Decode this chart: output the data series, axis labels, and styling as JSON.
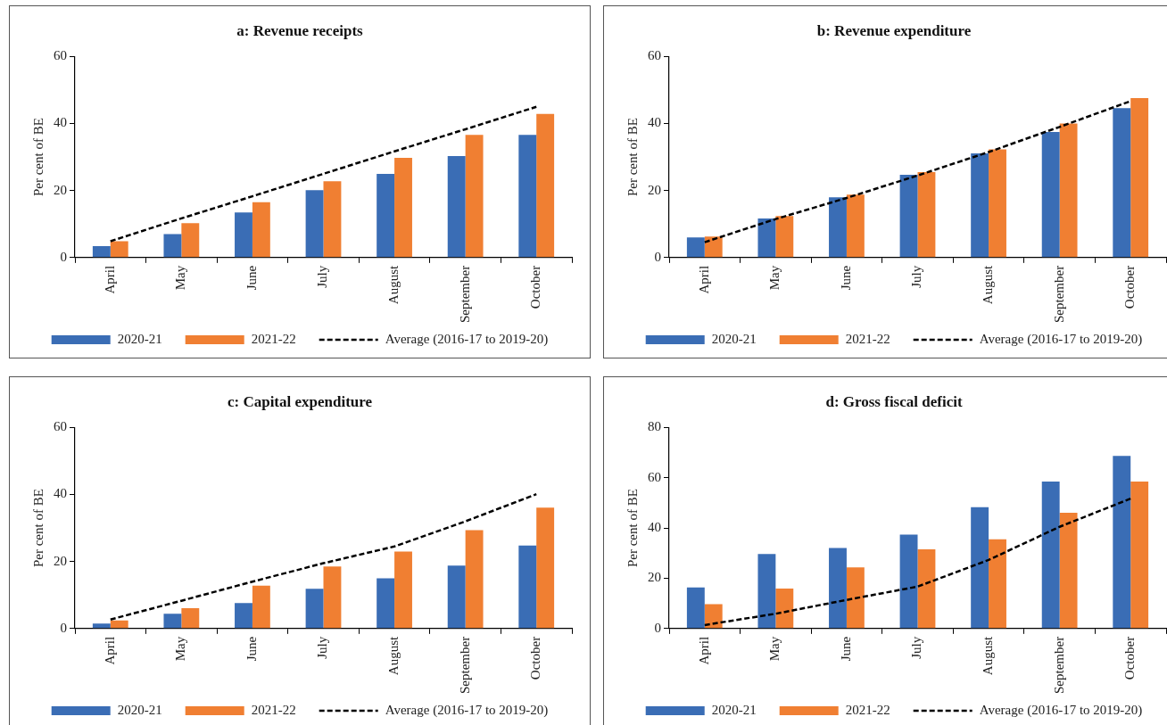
{
  "chart_data": [
    {
      "type": "bar",
      "title": "a: Revenue receipts",
      "ylabel": "Per cent of BE",
      "categories": [
        "April",
        "May",
        "June",
        "July",
        "August",
        "September",
        "October"
      ],
      "ylim": [
        0,
        60
      ],
      "yticks": [
        0,
        20,
        40,
        60
      ],
      "grid": false,
      "legend": "bottom",
      "series": [
        {
          "name": "2020-21",
          "color": "#3a6db5",
          "values": [
            3.4,
            7.0,
            13.5,
            20.1,
            25.0,
            30.3,
            36.6
          ]
        },
        {
          "name": "2021-22",
          "color": "#f07f32",
          "values": [
            4.9,
            10.3,
            16.5,
            22.8,
            29.8,
            36.6,
            42.9
          ]
        },
        {
          "name": "Average (2016-17 to 2019-20)",
          "type": "line",
          "color": "#000000",
          "line_style": "dashed",
          "marker": "none",
          "values": [
            4.9,
            11.7,
            18.3,
            25.0,
            31.7,
            38.3,
            45.0
          ]
        }
      ]
    },
    {
      "type": "bar",
      "title": "b: Revenue expenditure",
      "ylabel": "Per cent of BE",
      "categories": [
        "April",
        "May",
        "June",
        "July",
        "August",
        "September",
        "October"
      ],
      "ylim": [
        0,
        60
      ],
      "yticks": [
        0,
        20,
        40,
        60
      ],
      "grid": false,
      "legend": "bottom",
      "series": [
        {
          "name": "2020-21",
          "color": "#3a6db5",
          "values": [
            6.0,
            11.7,
            18.0,
            24.7,
            31.1,
            37.5,
            44.6
          ]
        },
        {
          "name": "2021-22",
          "color": "#f07f32",
          "values": [
            6.3,
            12.4,
            18.8,
            25.5,
            32.3,
            40.0,
            47.6
          ]
        },
        {
          "name": "Average (2016-17 to 2019-20)",
          "type": "line",
          "color": "#000000",
          "line_style": "dashed",
          "marker": "none",
          "values": [
            4.6,
            11.5,
            17.8,
            24.5,
            31.5,
            39.0,
            46.7
          ]
        }
      ]
    },
    {
      "type": "bar",
      "title": "c: Capital expenditure",
      "ylabel": "Per cent of BE",
      "categories": [
        "April",
        "May",
        "June",
        "July",
        "August",
        "September",
        "October"
      ],
      "ylim": [
        0,
        60
      ],
      "yticks": [
        0,
        20,
        40,
        60
      ],
      "grid": false,
      "legend": "bottom",
      "series": [
        {
          "name": "2020-21",
          "color": "#3a6db5",
          "values": [
            1.5,
            4.4,
            7.6,
            11.9,
            15.0,
            18.8,
            24.8
          ]
        },
        {
          "name": "2021-22",
          "color": "#f07f32",
          "values": [
            2.4,
            6.1,
            12.8,
            18.5,
            23.0,
            29.4,
            36.1
          ]
        },
        {
          "name": "Average (2016-17 to 2019-20)",
          "type": "line",
          "color": "#000000",
          "line_style": "dashed",
          "marker": "none",
          "values": [
            2.7,
            8.3,
            14.0,
            19.5,
            24.5,
            32.0,
            40.1
          ]
        }
      ]
    },
    {
      "type": "bar",
      "title": "d: Gross fiscal deficit",
      "ylabel": "Per cent of BE",
      "categories": [
        "April",
        "May",
        "June",
        "July",
        "August",
        "September",
        "October"
      ],
      "ylim": [
        0,
        80
      ],
      "yticks": [
        0,
        20,
        40,
        60,
        80
      ],
      "grid": false,
      "legend": "bottom",
      "series": [
        {
          "name": "2020-21",
          "color": "#3a6db5",
          "values": [
            16.4,
            29.7,
            32.1,
            37.4,
            48.3,
            58.5,
            68.7
          ]
        },
        {
          "name": "2021-22",
          "color": "#f07f32",
          "values": [
            9.7,
            15.9,
            24.3,
            31.5,
            35.5,
            46.1,
            58.5
          ]
        },
        {
          "name": "Average (2016-17 to 2019-20)",
          "type": "line",
          "color": "#000000",
          "line_style": "dashed",
          "marker": "none",
          "values": [
            1.4,
            5.9,
            11.4,
            16.7,
            27.3,
            40.5,
            51.7
          ]
        }
      ]
    }
  ]
}
